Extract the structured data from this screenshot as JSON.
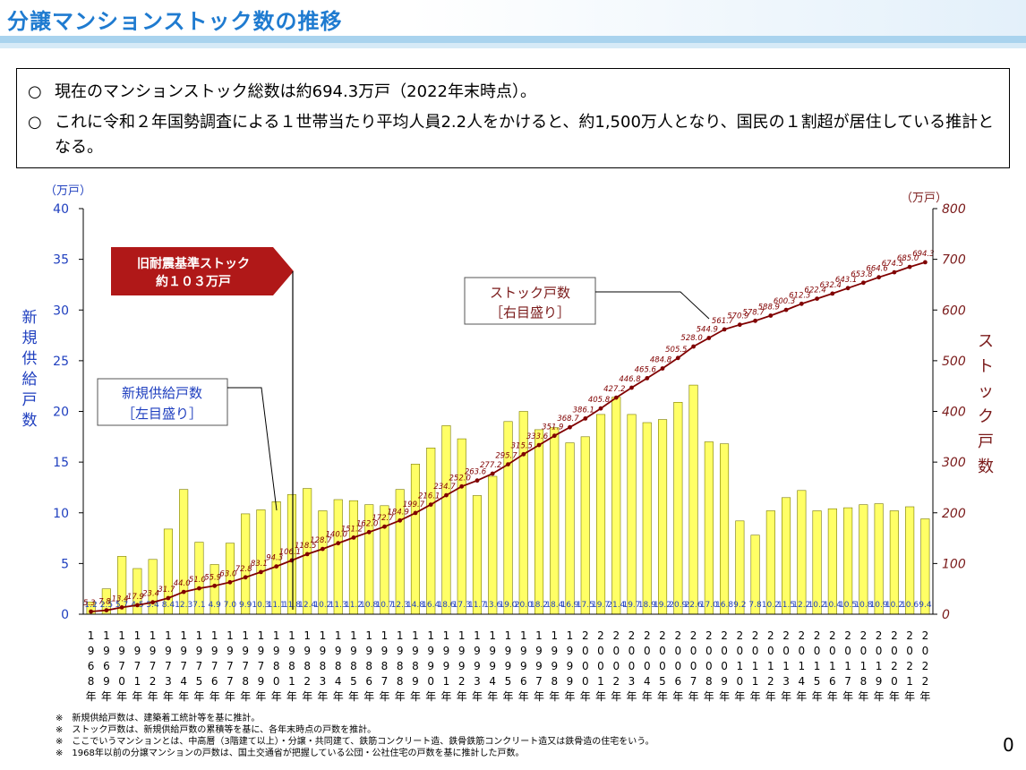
{
  "page": {
    "title": "分譲マンションストック数の推移",
    "page_number": "0"
  },
  "summary": {
    "bullet_mark": "○",
    "line1": "現在のマンションストック総数は約694.3万戸（2022年末時点）。",
    "line2": "これに令和２年国勢調査による１世帯当たり平均人員2.2人をかけると、約1,500万人となり、国民の１割超が居住している推計となる。"
  },
  "callouts": {
    "old_stock_line1": "旧耐震基準ストック",
    "old_stock_line2": "約１０３万戸",
    "stock_line1": "ストック戸数",
    "stock_line2": "［右目盛り］",
    "supply_line1": "新規供給戸数",
    "supply_line2": "［左目盛り］"
  },
  "notes": [
    "※　新規供給戸数は、建築着工統計等を基に推計。",
    "※　ストック戸数は、新規供給戸数の累積等を基に、各年末時点の戸数を推計。",
    "※　ここでいうマンションとは、中高層（3階建て以上）・分譲・共同建て、鉄筋コンクリート造、鉄骨鉄筋コンクリート造又は鉄骨造の住宅をいう。",
    "※　1968年以前の分譲マンションの戸数は、国土交通省が把握している公団・公社住宅の戸数を基に推計した戸数。"
  ],
  "colors": {
    "title": "#1f7bd0",
    "bar_fill": "#ffff66",
    "bar_stroke": "#7a7a00",
    "line": "#800000",
    "left_axis": "#1f3fbf",
    "right_axis": "#7a1a1a",
    "callout_fill": "#b01818"
  },
  "chart_data": {
    "type": "bar",
    "categories": [
      "1968年",
      "1969年",
      "1970年",
      "1971年",
      "1972年",
      "1973年",
      "1974年",
      "1975年",
      "1976年",
      "1977年",
      "1978年",
      "1979年",
      "1980年",
      "1981年",
      "1982年",
      "1983年",
      "1984年",
      "1985年",
      "1986年",
      "1987年",
      "1988年",
      "1989年",
      "1990年",
      "1991年",
      "1992年",
      "1993年",
      "1994年",
      "1995年",
      "1996年",
      "1997年",
      "1998年",
      "1999年",
      "2000年",
      "2001年",
      "2002年",
      "2003年",
      "2004年",
      "2005年",
      "2006年",
      "2007年",
      "2008年",
      "2009年",
      "2010年",
      "2011年",
      "2012年",
      "2013年",
      "2014年",
      "2015年",
      "2016年",
      "2017年",
      "2018年",
      "2019年",
      "2020年",
      "2021年",
      "2022年"
    ],
    "series": [
      {
        "name": "新規供給戸数",
        "axis": "left",
        "values": [
          1.2,
          2.5,
          5.7,
          4.5,
          5.4,
          8.4,
          12.3,
          7.1,
          4.9,
          7.0,
          9.9,
          10.3,
          11.1,
          11.8,
          12.4,
          10.2,
          11.3,
          11.2,
          10.8,
          10.7,
          12.3,
          14.8,
          16.4,
          18.6,
          17.3,
          11.7,
          13.6,
          19.0,
          20.0,
          18.2,
          18.4,
          16.9,
          17.5,
          19.7,
          21.4,
          19.7,
          18.9,
          19.2,
          20.9,
          22.6,
          17.0,
          16.8,
          9.2,
          7.8,
          10.2,
          11.5,
          12.2,
          10.2,
          10.4,
          10.5,
          10.8,
          10.9,
          10.2,
          10.6,
          9.4
        ],
        "value_labels": [
          "1.2",
          "2.5",
          "5.7",
          "4.5",
          "5.4",
          "8.4",
          "12.3",
          "7.1",
          "4.9",
          "7.0",
          "9.9",
          "10.3",
          "11.1",
          "11.8",
          "12.4",
          "10.2",
          "11.3",
          "11.2",
          "10.8",
          "10.7",
          "12.3",
          "14.8",
          "16.4",
          "18.6",
          "17.3",
          "11.7",
          "13.6",
          "19.0",
          "20.0",
          "18.2",
          "18.4",
          "16.9",
          "17.5",
          "19.7",
          "21.4",
          "19.7",
          "18.9",
          "19.2",
          "20.9",
          "22.6",
          "17.0",
          "16.8",
          "9.2",
          "7.8",
          "10.2",
          "11.5",
          "12.2",
          "10.2",
          "10.4",
          "10.5",
          "10.8",
          "10.9",
          "10.2",
          "10.6",
          "9.4"
        ]
      },
      {
        "name": "ストック戸数",
        "axis": "right",
        "type": "line",
        "values": [
          5.3,
          7.8,
          13.4,
          17.9,
          23.4,
          31.7,
          44.0,
          51.0,
          55.9,
          63.0,
          72.8,
          83.1,
          94.3,
          106.1,
          118.5,
          128.7,
          140.0,
          151.2,
          162.0,
          172.7,
          184.9,
          199.7,
          216.1,
          234.7,
          252.0,
          263.6,
          277.2,
          295.7,
          315.5,
          333.6,
          351.9,
          368.7,
          386.1,
          405.8,
          427.2,
          446.8,
          465.6,
          484.8,
          505.5,
          528.0,
          544.9,
          561.7,
          570.9,
          578.7,
          588.9,
          600.3,
          612.3,
          622.4,
          632.4,
          643.1,
          653.8,
          664.6,
          674.5,
          685.0,
          694.3
        ],
        "value_labels": [
          "5.3",
          "7.8",
          "13.4",
          "17.9",
          "23.4",
          "31.7",
          "44.0",
          "51.0",
          "55.9",
          "63.0",
          "72.8",
          "83.1",
          "94.3",
          "106.1",
          "118.5",
          "128.7",
          "140.0",
          "151.2",
          "162.0",
          "172.7",
          "184.9",
          "199.7",
          "216.1",
          "234.7",
          "252.0",
          "263.6",
          "277.2",
          "295.7",
          "315.5",
          "333.6",
          "351.9",
          "368.7",
          "386.1",
          "405.8",
          "427.2",
          "446.8",
          "465.6",
          "484.8",
          "505.5",
          "528.0",
          "544.9",
          "561.7",
          "570.9",
          "578.7",
          "588.9",
          "600.3",
          "612.3",
          "622.4",
          "632.4",
          "643.1",
          "653.8",
          "664.6",
          "674.5",
          "685.0",
          "694.3"
        ]
      }
    ],
    "ylabel_left": "新規供給戸数",
    "ylabel_right": "ストック戸数",
    "unit_left": "（万戸）",
    "unit_right": "（万戸）",
    "ylim_left": [
      0,
      40
    ],
    "ylim_right": [
      0,
      800
    ],
    "yticks_left": [
      0,
      5,
      10,
      15,
      20,
      25,
      30,
      35,
      40
    ],
    "yticks_right": [
      0,
      100,
      200,
      300,
      400,
      500,
      600,
      700,
      800
    ],
    "legend": "none"
  }
}
